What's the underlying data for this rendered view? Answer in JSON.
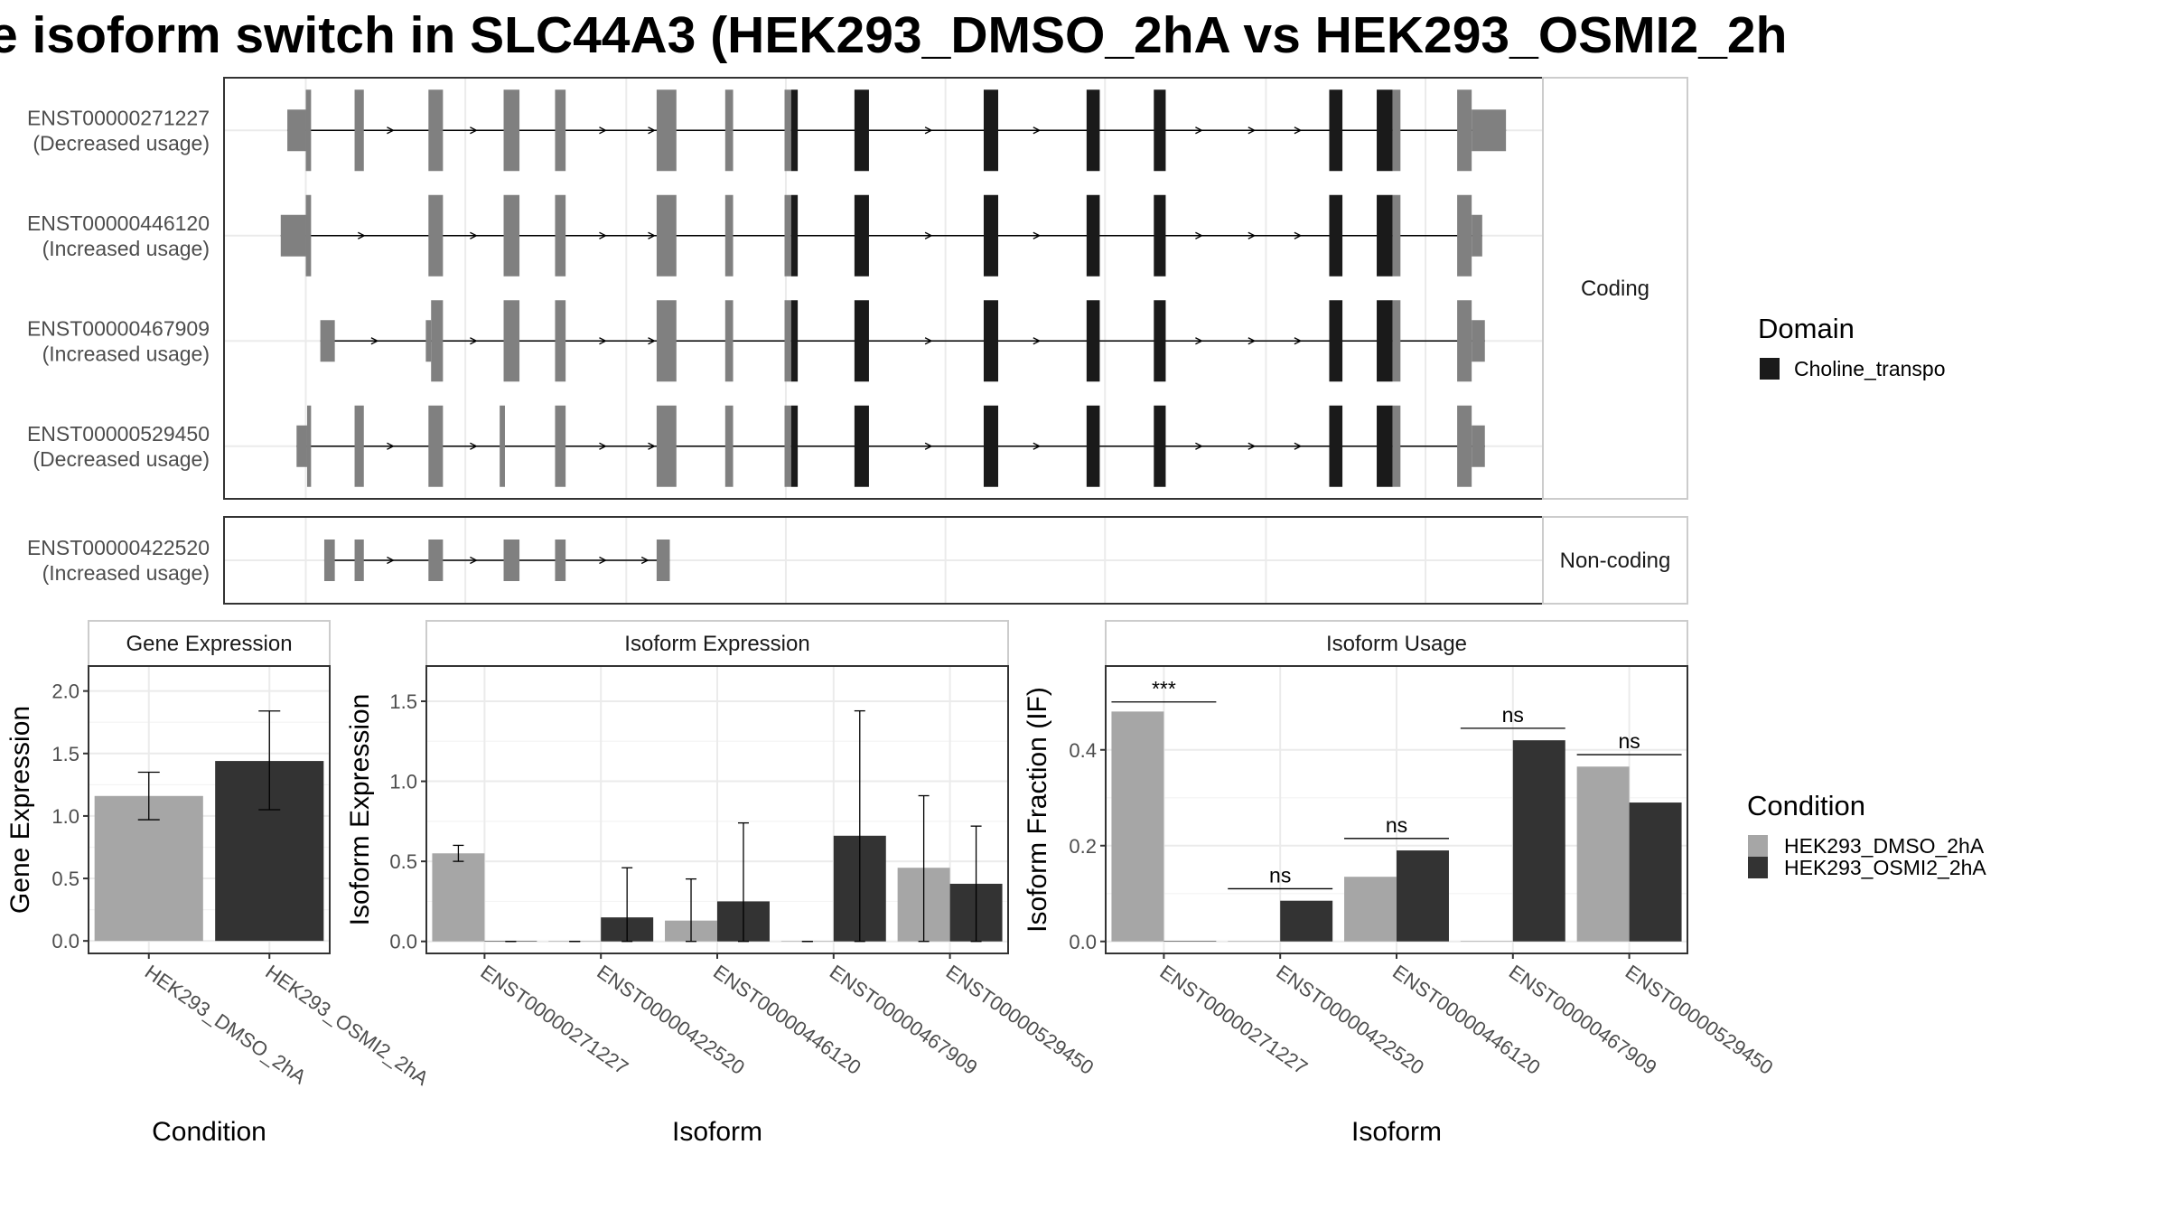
{
  "chart_data": {
    "title": "e isoform switch in SLC44A3 (HEK293_DMSO_2hA vs HEK293_OSMI2_2h",
    "colors": {
      "domain": "#1a1a1a",
      "exon": "#808080",
      "dmso": "#a6a6a6",
      "osmi": "#333333",
      "grid": "#ebebeb",
      "border": "#333333",
      "strip_border": "#cccccc"
    },
    "structure": {
      "x_range": [
        0,
        100
      ],
      "groups": [
        {
          "label": "Coding",
          "isoforms": [
            {
              "id": "ENST00000271227",
              "usage": "(Decreased usage)",
              "blocks": [
                [
                  4.8,
                  6.2,
                  "utr"
                ],
                [
                  6.2,
                  6.6,
                  "cds"
                ],
                [
                  9.9,
                  10.6,
                  "cds"
                ],
                [
                  15.5,
                  16.6,
                  "cds"
                ],
                [
                  21.2,
                  22.4,
                  "cds"
                ],
                [
                  25.1,
                  25.9,
                  "cds"
                ],
                [
                  32.8,
                  34.3,
                  "cds"
                ],
                [
                  38.0,
                  38.6,
                  "cds"
                ],
                [
                  42.5,
                  43.0,
                  "cds"
                ],
                [
                  43.0,
                  43.5,
                  "dom"
                ],
                [
                  47.8,
                  48.9,
                  "dom"
                ],
                [
                  57.6,
                  58.7,
                  "dom"
                ],
                [
                  65.4,
                  66.4,
                  "dom"
                ],
                [
                  70.5,
                  71.4,
                  "dom"
                ],
                [
                  83.8,
                  84.8,
                  "dom"
                ],
                [
                  87.4,
                  88.6,
                  "dom"
                ],
                [
                  88.6,
                  89.2,
                  "cds"
                ],
                [
                  93.5,
                  94.6,
                  "cds"
                ],
                [
                  94.6,
                  97.2,
                  "utr"
                ]
              ],
              "arrows": [
                12.7,
                19.0,
                28.8,
                32.5,
                53.5,
                61.7,
                74.0,
                78.0,
                81.5
              ]
            },
            {
              "id": "ENST00000446120",
              "usage": "(Increased usage)",
              "blocks": [
                [
                  4.3,
                  6.2,
                  "utr"
                ],
                [
                  6.2,
                  6.6,
                  "cds"
                ],
                [
                  15.5,
                  16.6,
                  "cds"
                ],
                [
                  21.2,
                  22.4,
                  "cds"
                ],
                [
                  25.1,
                  25.9,
                  "cds"
                ],
                [
                  32.8,
                  34.3,
                  "cds"
                ],
                [
                  38.0,
                  38.6,
                  "cds"
                ],
                [
                  42.5,
                  43.0,
                  "cds"
                ],
                [
                  43.0,
                  43.5,
                  "dom"
                ],
                [
                  47.8,
                  48.9,
                  "dom"
                ],
                [
                  57.6,
                  58.7,
                  "dom"
                ],
                [
                  65.4,
                  66.4,
                  "dom"
                ],
                [
                  70.5,
                  71.4,
                  "dom"
                ],
                [
                  83.8,
                  84.8,
                  "dom"
                ],
                [
                  87.4,
                  88.6,
                  "dom"
                ],
                [
                  88.6,
                  89.2,
                  "cds"
                ],
                [
                  93.5,
                  94.6,
                  "cds"
                ],
                [
                  94.6,
                  95.4,
                  "utr"
                ]
              ],
              "arrows": [
                10.5,
                19.0,
                28.8,
                32.5,
                53.5,
                61.7,
                74.0,
                78.0,
                81.5
              ]
            },
            {
              "id": "ENST00000467909",
              "usage": "(Increased usage)",
              "blocks": [
                [
                  7.3,
                  8.4,
                  "utr"
                ],
                [
                  15.3,
                  15.7,
                  "utr"
                ],
                [
                  15.7,
                  16.6,
                  "cds"
                ],
                [
                  21.2,
                  22.4,
                  "cds"
                ],
                [
                  25.1,
                  25.9,
                  "cds"
                ],
                [
                  32.8,
                  34.3,
                  "cds"
                ],
                [
                  38.0,
                  38.6,
                  "cds"
                ],
                [
                  42.5,
                  43.0,
                  "cds"
                ],
                [
                  43.0,
                  43.5,
                  "dom"
                ],
                [
                  47.8,
                  48.9,
                  "dom"
                ],
                [
                  57.6,
                  58.7,
                  "dom"
                ],
                [
                  65.4,
                  66.4,
                  "dom"
                ],
                [
                  70.5,
                  71.4,
                  "dom"
                ],
                [
                  83.8,
                  84.8,
                  "dom"
                ],
                [
                  87.4,
                  88.6,
                  "dom"
                ],
                [
                  88.6,
                  89.2,
                  "cds"
                ],
                [
                  93.5,
                  94.6,
                  "cds"
                ],
                [
                  94.6,
                  95.6,
                  "utr"
                ]
              ],
              "arrows": [
                11.5,
                19.0,
                28.8,
                32.5,
                53.5,
                61.7,
                74.0,
                78.0,
                81.5
              ]
            },
            {
              "id": "ENST00000529450",
              "usage": "(Decreased usage)",
              "blocks": [
                [
                  5.5,
                  6.3,
                  "utr"
                ],
                [
                  6.3,
                  6.6,
                  "cds"
                ],
                [
                  9.9,
                  10.6,
                  "cds"
                ],
                [
                  15.5,
                  16.6,
                  "cds"
                ],
                [
                  20.9,
                  21.3,
                  "cds"
                ],
                [
                  25.1,
                  25.9,
                  "cds"
                ],
                [
                  32.8,
                  34.3,
                  "cds"
                ],
                [
                  38.0,
                  38.6,
                  "cds"
                ],
                [
                  42.5,
                  43.0,
                  "cds"
                ],
                [
                  43.0,
                  43.5,
                  "dom"
                ],
                [
                  47.8,
                  48.9,
                  "dom"
                ],
                [
                  57.6,
                  58.7,
                  "dom"
                ],
                [
                  65.4,
                  66.4,
                  "dom"
                ],
                [
                  70.5,
                  71.4,
                  "dom"
                ],
                [
                  83.8,
                  84.8,
                  "dom"
                ],
                [
                  87.4,
                  88.6,
                  "dom"
                ],
                [
                  88.6,
                  89.2,
                  "cds"
                ],
                [
                  93.5,
                  94.6,
                  "cds"
                ],
                [
                  94.6,
                  95.6,
                  "utr"
                ]
              ],
              "arrows": [
                12.7,
                19.0,
                28.8,
                32.5,
                53.5,
                61.7,
                74.0,
                78.0,
                81.5
              ]
            }
          ]
        },
        {
          "label": "Non-coding",
          "isoforms": [
            {
              "id": "ENST00000422520",
              "usage": "(Increased usage)",
              "blocks": [
                [
                  7.6,
                  8.4,
                  "utr"
                ],
                [
                  9.9,
                  10.6,
                  "utr"
                ],
                [
                  15.5,
                  16.6,
                  "utr"
                ],
                [
                  21.2,
                  22.4,
                  "utr"
                ],
                [
                  25.1,
                  25.9,
                  "utr"
                ],
                [
                  32.8,
                  33.8,
                  "utr"
                ]
              ],
              "arrows": [
                12.7,
                19.0,
                28.8,
                32.0
              ]
            }
          ]
        }
      ]
    },
    "legend_domain": {
      "title": "Domain",
      "items": [
        "Choline_transpo"
      ]
    },
    "legend_condition": {
      "title": "Condition",
      "items": [
        "HEK293_DMSO_2hA",
        "HEK293_OSMI2_2hA"
      ]
    },
    "gene_expression": {
      "type": "bar",
      "strip": "Gene Expression",
      "xlabel": "Condition",
      "ylabel": "Gene Expression",
      "ylim": [
        -0.1,
        2.2
      ],
      "yticks": [
        "0.0",
        "0.5",
        "1.0",
        "1.5",
        "2.0"
      ],
      "categories": [
        "HEK293_DMSO_2hA",
        "HEK293_OSMI2_2hA"
      ],
      "values": [
        1.16,
        1.44
      ],
      "err_low": [
        0.97,
        1.05
      ],
      "err_high": [
        1.35,
        1.84
      ]
    },
    "isoform_expression": {
      "type": "bar",
      "strip": "Isoform Expression",
      "xlabel": "Isoform",
      "ylabel": "Isoform Expression",
      "ylim": [
        -0.075,
        1.72
      ],
      "yticks": [
        "0.0",
        "0.5",
        "1.0",
        "1.5"
      ],
      "categories": [
        "ENST00000271227",
        "ENST00000422520",
        "ENST00000446120",
        "ENST00000467909",
        "ENST00000529450"
      ],
      "series": [
        {
          "name": "HEK293_DMSO_2hA",
          "values": [
            0.55,
            0.0,
            0.13,
            0.0,
            0.46
          ],
          "err_low": [
            0.5,
            0.0,
            0.0,
            0.0,
            0.0
          ],
          "err_high": [
            0.6,
            0.0,
            0.39,
            0.0,
            0.91
          ]
        },
        {
          "name": "HEK293_OSMI2_2hA",
          "values": [
            0.0,
            0.15,
            0.25,
            0.66,
            0.36
          ],
          "err_low": [
            0.0,
            0.0,
            0.0,
            0.0,
            0.0
          ],
          "err_high": [
            0.0,
            0.46,
            0.74,
            1.44,
            0.72
          ]
        }
      ]
    },
    "isoform_usage": {
      "type": "bar",
      "strip": "Isoform Usage",
      "xlabel": "Isoform",
      "ylabel": "Isoform Fraction (IF)",
      "ylim": [
        -0.025,
        0.575
      ],
      "yticks": [
        "0.0",
        "0.2",
        "0.4"
      ],
      "categories": [
        "ENST00000271227",
        "ENST00000422520",
        "ENST00000446120",
        "ENST00000467909",
        "ENST00000529450"
      ],
      "series": [
        {
          "name": "HEK293_DMSO_2hA",
          "values": [
            0.48,
            0.0,
            0.135,
            0.0,
            0.365
          ]
        },
        {
          "name": "HEK293_OSMI2_2hA",
          "values": [
            0.0,
            0.085,
            0.19,
            0.42,
            0.29
          ]
        }
      ],
      "significance": [
        "***",
        "ns",
        "ns",
        "ns",
        "ns"
      ],
      "sig_line": [
        0.5,
        0.11,
        0.215,
        0.445,
        0.39
      ]
    }
  }
}
